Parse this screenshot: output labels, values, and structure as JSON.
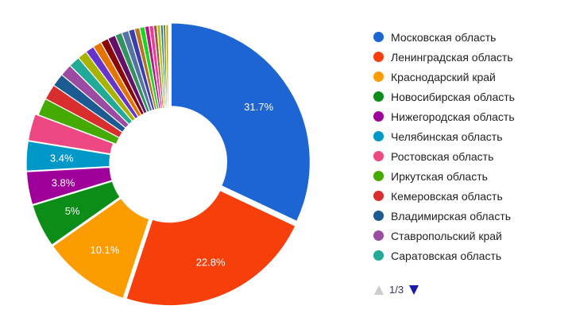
{
  "chart_data": {
    "type": "pie",
    "donut": true,
    "legend_position": "right",
    "slices": [
      {
        "name": "Московская область",
        "value": 31.7,
        "label": "31.7%",
        "color": "#1c65d2"
      },
      {
        "name": "Ленинградская область",
        "value": 22.8,
        "label": "22.8%",
        "color": "#f73f0c"
      },
      {
        "name": "Краснодарский край",
        "value": 10.1,
        "label": "10.1%",
        "color": "#fb9c00"
      },
      {
        "name": "Новосибирская область",
        "value": 5.0,
        "label": "5%",
        "color": "#0b8d17"
      },
      {
        "name": "Нижегородская область",
        "value": 3.8,
        "label": "3.8%",
        "color": "#a0009a"
      },
      {
        "name": "Челябинская область",
        "value": 3.4,
        "label": "3.4%",
        "color": "#0099c7"
      },
      {
        "name": "Ростовская область",
        "value": 3.1,
        "label": "",
        "color": "#ee4883"
      },
      {
        "name": "Иркутская область",
        "value": 2.0,
        "label": "",
        "color": "#44aa00"
      },
      {
        "name": "Кемеровская область",
        "value": 1.8,
        "label": "",
        "color": "#d92e2e"
      },
      {
        "name": "Владимирская область",
        "value": 1.5,
        "label": "",
        "color": "#1b5b91"
      },
      {
        "name": "Ставропольский край",
        "value": 1.4,
        "label": "",
        "color": "#9b4ba2"
      },
      {
        "name": "Саратовская область",
        "value": 1.3,
        "label": "",
        "color": "#22aa99"
      },
      {
        "name": "",
        "value": 1.1,
        "label": "",
        "color": "#a8b300"
      },
      {
        "name": "",
        "value": 1.0,
        "label": "",
        "color": "#6633cc"
      },
      {
        "name": "",
        "value": 1.0,
        "label": "",
        "color": "#e67300"
      },
      {
        "name": "",
        "value": 0.9,
        "label": "",
        "color": "#8b0707"
      },
      {
        "name": "",
        "value": 0.9,
        "label": "",
        "color": "#651067"
      },
      {
        "name": "",
        "value": 0.8,
        "label": "",
        "color": "#329262"
      },
      {
        "name": "",
        "value": 0.8,
        "label": "",
        "color": "#5574a6"
      },
      {
        "name": "",
        "value": 0.7,
        "label": "",
        "color": "#3b3eac"
      },
      {
        "name": "",
        "value": 0.6,
        "label": "",
        "color": "#b77322"
      },
      {
        "name": "",
        "value": 0.6,
        "label": "",
        "color": "#16d620"
      },
      {
        "name": "",
        "value": 0.5,
        "label": "",
        "color": "#b91383"
      },
      {
        "name": "",
        "value": 0.5,
        "label": "",
        "color": "#f4359e"
      },
      {
        "name": "",
        "value": 0.4,
        "label": "",
        "color": "#9c5935"
      },
      {
        "name": "",
        "value": 0.4,
        "label": "",
        "color": "#a9c413"
      },
      {
        "name": "",
        "value": 0.3,
        "label": "",
        "color": "#2a778d"
      },
      {
        "name": "",
        "value": 0.3,
        "label": "",
        "color": "#668d1c"
      },
      {
        "name": "",
        "value": 0.3,
        "label": "",
        "color": "#bea413"
      }
    ]
  },
  "legend": {
    "page_text": "1/3",
    "prev_icon": "triangle-up-icon",
    "next_icon": "triangle-down-icon",
    "prev_color": "#cccccc",
    "next_color": "#1a1aaa"
  }
}
